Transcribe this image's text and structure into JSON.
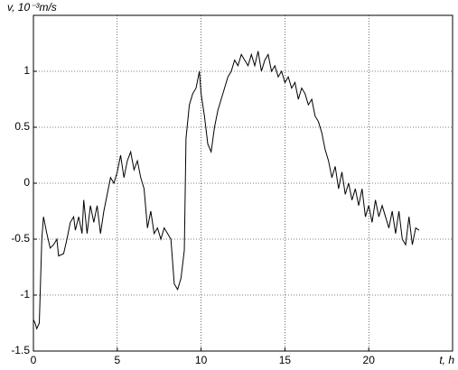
{
  "chart_data": {
    "type": "line",
    "xlabel": "t, h",
    "ylabel": "v, 10⁻³m/s",
    "x": [
      0,
      0.1,
      0.2,
      0.35,
      0.5,
      0.6,
      0.8,
      1.0,
      1.2,
      1.4,
      1.5,
      1.8,
      2.0,
      2.2,
      2.4,
      2.5,
      2.7,
      2.9,
      3.0,
      3.2,
      3.4,
      3.6,
      3.8,
      4.0,
      4.2,
      4.4,
      4.6,
      4.8,
      5.0,
      5.2,
      5.4,
      5.6,
      5.8,
      6.0,
      6.2,
      6.4,
      6.6,
      6.8,
      7.0,
      7.2,
      7.4,
      7.6,
      7.8,
      8.0,
      8.2,
      8.4,
      8.6,
      8.8,
      9.0,
      9.1,
      9.3,
      9.5,
      9.7,
      9.9,
      10.0,
      10.2,
      10.4,
      10.6,
      10.8,
      11.0,
      11.2,
      11.4,
      11.6,
      11.8,
      12.0,
      12.2,
      12.4,
      12.6,
      12.8,
      13.0,
      13.2,
      13.4,
      13.6,
      13.8,
      14.0,
      14.2,
      14.4,
      14.6,
      14.8,
      15.0,
      15.2,
      15.4,
      15.6,
      15.8,
      16.0,
      16.2,
      16.4,
      16.6,
      16.8,
      17.0,
      17.2,
      17.4,
      17.6,
      17.8,
      18.0,
      18.2,
      18.4,
      18.6,
      18.8,
      19.0,
      19.2,
      19.4,
      19.6,
      19.8,
      20.0,
      20.2,
      20.4,
      20.6,
      20.8,
      21.0,
      21.2,
      21.4,
      21.6,
      21.8,
      22.0,
      22.2,
      22.4,
      22.6,
      22.8,
      23.0
    ],
    "values": [
      -1.22,
      -1.25,
      -1.3,
      -1.25,
      -0.5,
      -0.3,
      -0.45,
      -0.58,
      -0.55,
      -0.5,
      -0.65,
      -0.63,
      -0.5,
      -0.35,
      -0.3,
      -0.42,
      -0.3,
      -0.45,
      -0.15,
      -0.45,
      -0.2,
      -0.35,
      -0.2,
      -0.45,
      -0.25,
      -0.1,
      0.05,
      0.0,
      0.1,
      0.25,
      0.05,
      0.2,
      0.28,
      0.12,
      0.2,
      0.05,
      -0.05,
      -0.4,
      -0.25,
      -0.45,
      -0.4,
      -0.5,
      -0.4,
      -0.45,
      -0.5,
      -0.9,
      -0.95,
      -0.85,
      -0.6,
      0.4,
      0.7,
      0.8,
      0.85,
      1.0,
      0.8,
      0.6,
      0.35,
      0.28,
      0.5,
      0.65,
      0.75,
      0.85,
      0.95,
      1.0,
      1.1,
      1.05,
      1.15,
      1.1,
      1.05,
      1.15,
      1.05,
      1.18,
      1.0,
      1.1,
      1.15,
      1.0,
      1.05,
      0.95,
      1.0,
      0.9,
      0.95,
      0.85,
      0.9,
      0.75,
      0.85,
      0.8,
      0.7,
      0.75,
      0.6,
      0.55,
      0.45,
      0.3,
      0.2,
      0.05,
      0.15,
      -0.05,
      0.1,
      -0.1,
      0.0,
      -0.15,
      -0.05,
      -0.2,
      -0.05,
      -0.3,
      -0.2,
      -0.35,
      -0.15,
      -0.3,
      -0.2,
      -0.3,
      -0.4,
      -0.25,
      -0.45,
      -0.25,
      -0.5,
      -0.55,
      -0.3,
      -0.55,
      -0.4,
      -0.42
    ],
    "color": "#000000",
    "xlim": [
      0,
      25
    ],
    "xticks": [
      0,
      5,
      10,
      15,
      20
    ],
    "ylim": [
      -1.5,
      1.5
    ],
    "yticks": [
      -1.5,
      -1,
      -0.5,
      0,
      0.5,
      1
    ],
    "grid": true
  }
}
